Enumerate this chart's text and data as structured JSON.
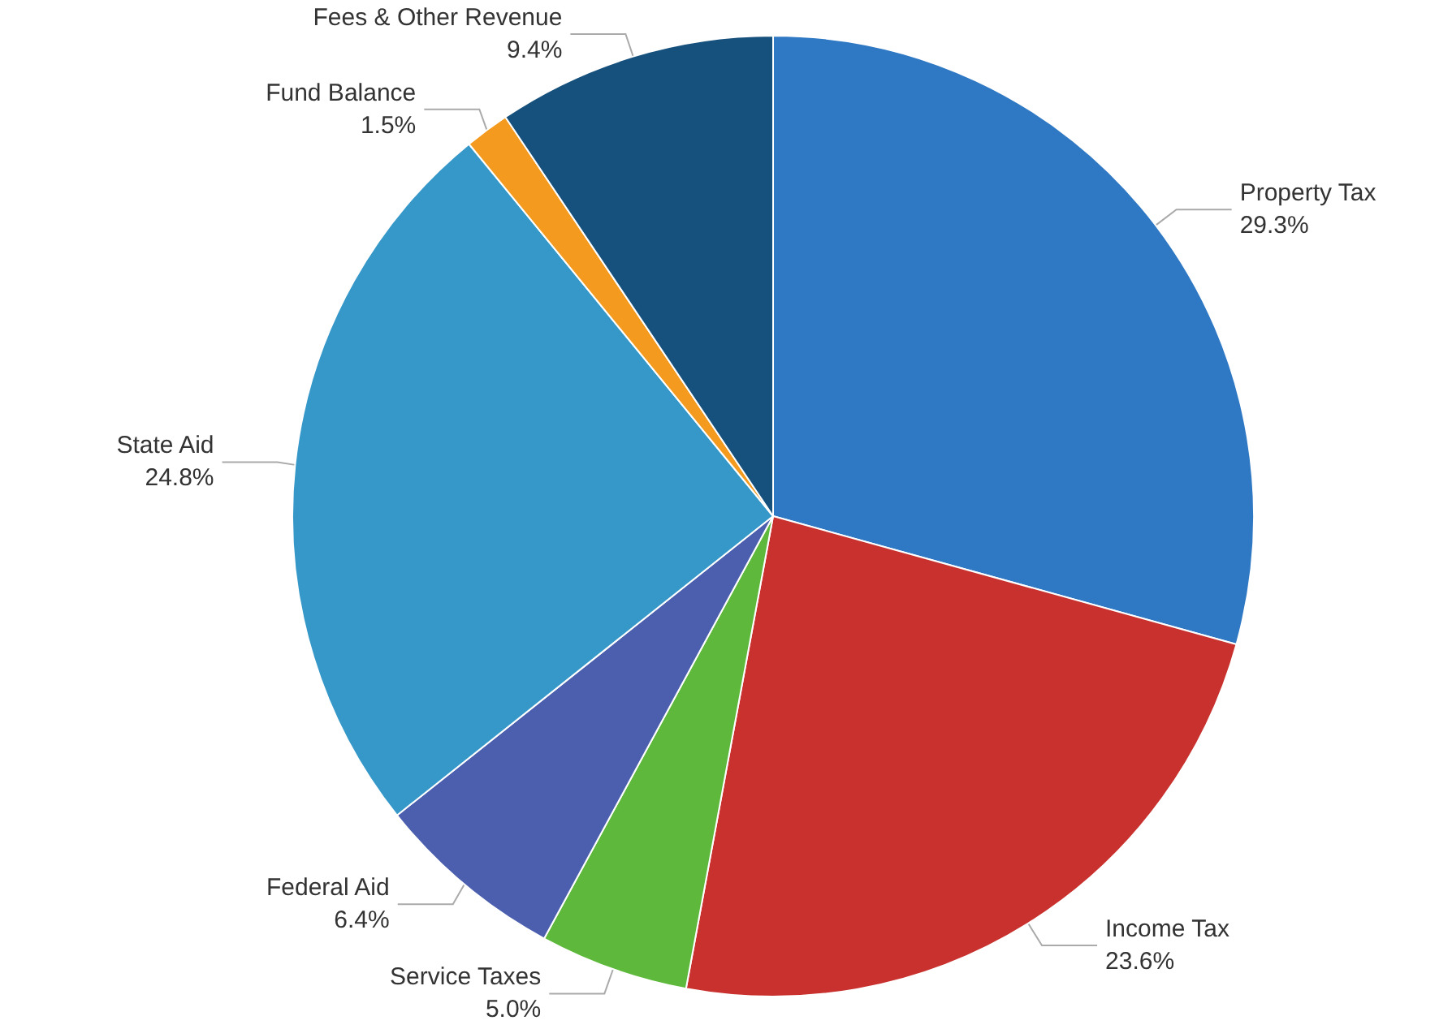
{
  "chart_data": {
    "type": "pie",
    "categories": [
      "Property Tax",
      "Income Tax",
      "Service Taxes",
      "Federal Aid",
      "State Aid",
      "Fund Balance",
      "Fees & Other Revenue"
    ],
    "values": [
      29.3,
      23.6,
      5.0,
      6.4,
      24.8,
      1.5,
      9.4
    ],
    "value_labels": [
      "29.3%",
      "23.6%",
      "5.0%",
      "6.4%",
      "24.8%",
      "1.5%",
      "9.4%"
    ],
    "colors": [
      "#2f78c4",
      "#c8312e",
      "#5db83b",
      "#4b5fae",
      "#3598c9",
      "#f39a1f",
      "#16507c"
    ],
    "legend": false
  }
}
